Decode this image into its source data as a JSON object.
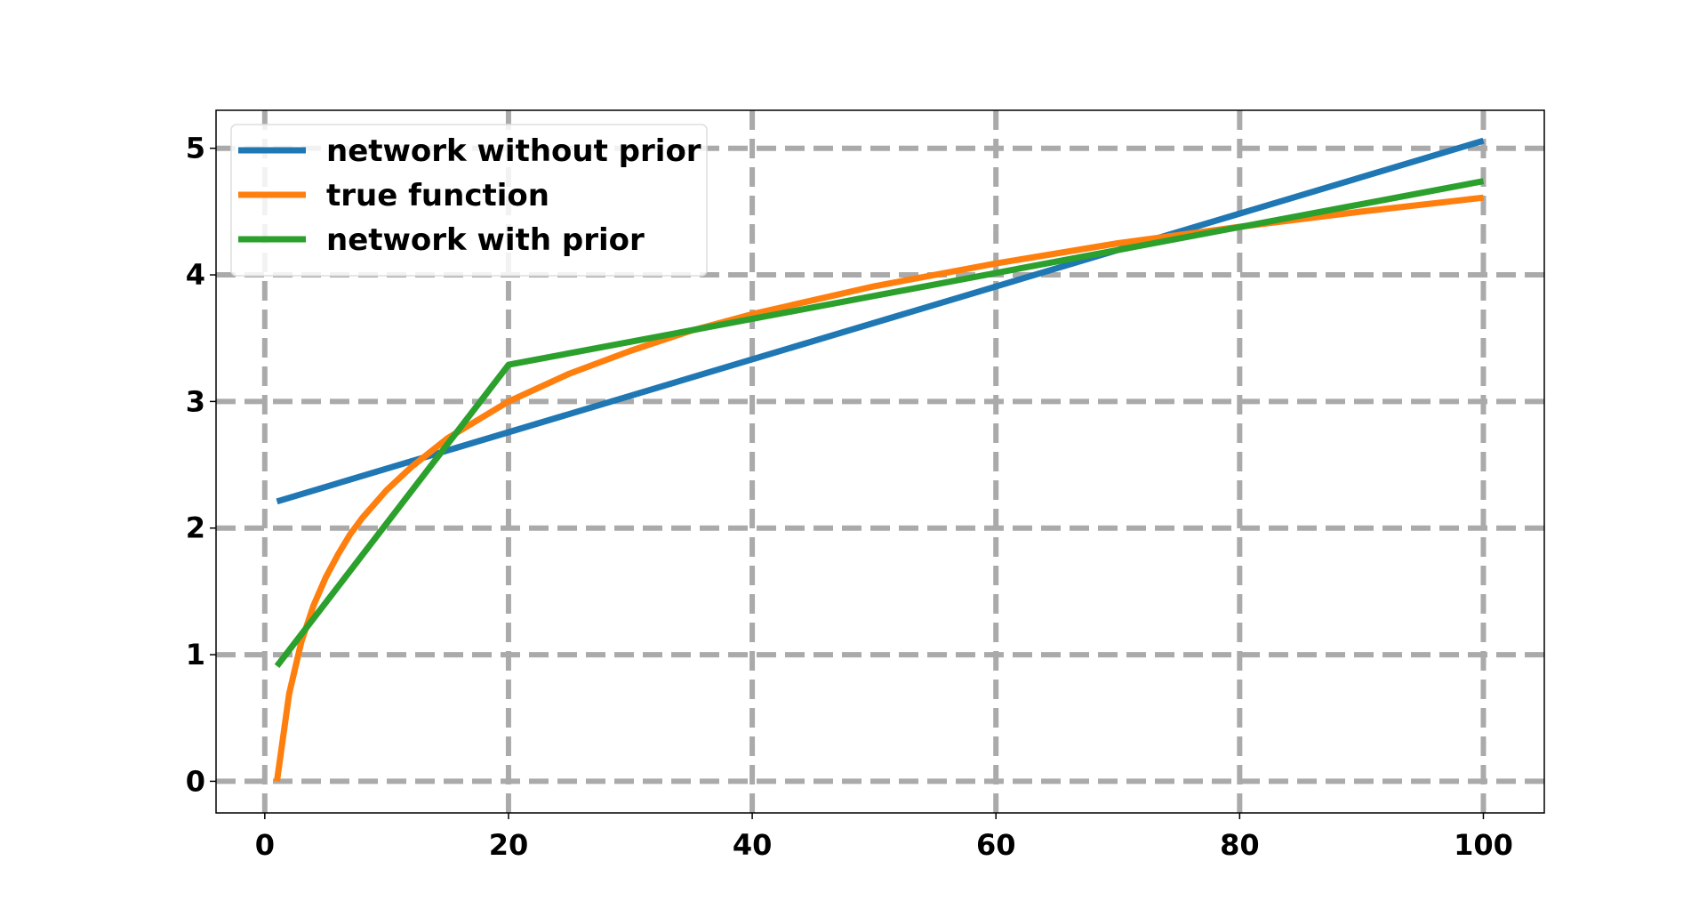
{
  "chart_data": {
    "type": "line",
    "title": "",
    "xlabel": "",
    "ylabel": "",
    "xlim": [
      -4,
      105
    ],
    "ylim": [
      -0.25,
      5.3
    ],
    "x_ticks": [
      0,
      20,
      40,
      60,
      80,
      100
    ],
    "y_ticks": [
      0,
      1,
      2,
      3,
      4,
      5
    ],
    "x_tick_labels": [
      "0",
      "20",
      "40",
      "60",
      "80",
      "100"
    ],
    "y_tick_labels": [
      "0",
      "1",
      "2",
      "3",
      "4",
      "5"
    ],
    "grid": true,
    "legend_position": "top-left",
    "series": [
      {
        "name": "network without prior",
        "color": "#1f77b4",
        "x": [
          1,
          100
        ],
        "y": [
          2.21,
          5.06
        ]
      },
      {
        "name": "true function",
        "color": "#ff7f0e",
        "x": [
          1,
          2,
          3,
          4,
          5,
          6,
          7,
          8,
          10,
          12,
          15,
          20,
          25,
          30,
          35,
          40,
          50,
          60,
          70,
          80,
          90,
          100
        ],
        "y": [
          0.0,
          0.69,
          1.1,
          1.39,
          1.61,
          1.79,
          1.95,
          2.08,
          2.3,
          2.48,
          2.71,
          3.0,
          3.22,
          3.4,
          3.56,
          3.69,
          3.91,
          4.09,
          4.25,
          4.38,
          4.5,
          4.61
        ]
      },
      {
        "name": "network with prior",
        "color": "#2ca02c",
        "x": [
          1,
          20,
          100
        ],
        "y": [
          0.91,
          3.29,
          4.74
        ]
      }
    ]
  }
}
